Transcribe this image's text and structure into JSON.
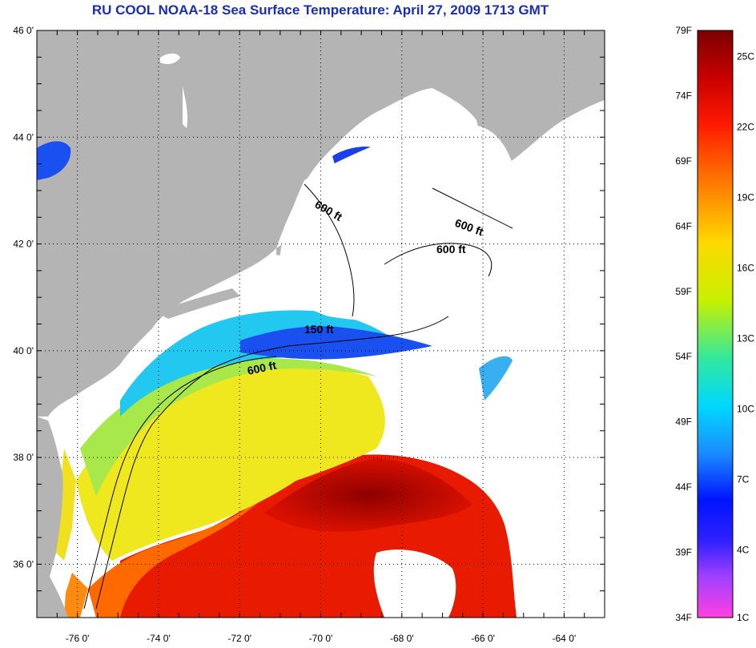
{
  "title": "RU COOL  NOAA-18  Sea Surface Temperature:  April 27, 2009 1713 GMT",
  "map": {
    "lon_range": [
      -77,
      -63
    ],
    "lat_range": [
      35,
      46
    ],
    "lat_ticks": [
      {
        "value": 46,
        "label": "46 0'"
      },
      {
        "value": 44,
        "label": "44 0'"
      },
      {
        "value": 42,
        "label": "42 0'"
      },
      {
        "value": 40,
        "label": "40 0'"
      },
      {
        "value": 38,
        "label": "38 0'"
      },
      {
        "value": 36,
        "label": "36 0'"
      }
    ],
    "lon_ticks": [
      {
        "value": -76,
        "label": "-76 0'"
      },
      {
        "value": -74,
        "label": "-74 0'"
      },
      {
        "value": -72,
        "label": "-72 0'"
      },
      {
        "value": -70,
        "label": "-70 0'"
      },
      {
        "value": -68,
        "label": "-68 0'"
      },
      {
        "value": -66,
        "label": "-66 0'"
      },
      {
        "value": -64,
        "label": "-64 0'"
      }
    ],
    "contour_labels": [
      "600 ft",
      "600 ft",
      "600 ft",
      "150 ft",
      "600 ft"
    ],
    "colors": {
      "land": "#b4b4b4",
      "cloud": "#ffffff",
      "frame": "#000000"
    }
  },
  "colorbar": {
    "fahrenheit": [
      "79F",
      "74F",
      "69F",
      "64F",
      "59F",
      "54F",
      "49F",
      "44F",
      "39F",
      "34F"
    ],
    "celsius": [
      "25C",
      "22C",
      "19C",
      "16C",
      "13C",
      "10C",
      "7C",
      "4C",
      "1C"
    ]
  }
}
